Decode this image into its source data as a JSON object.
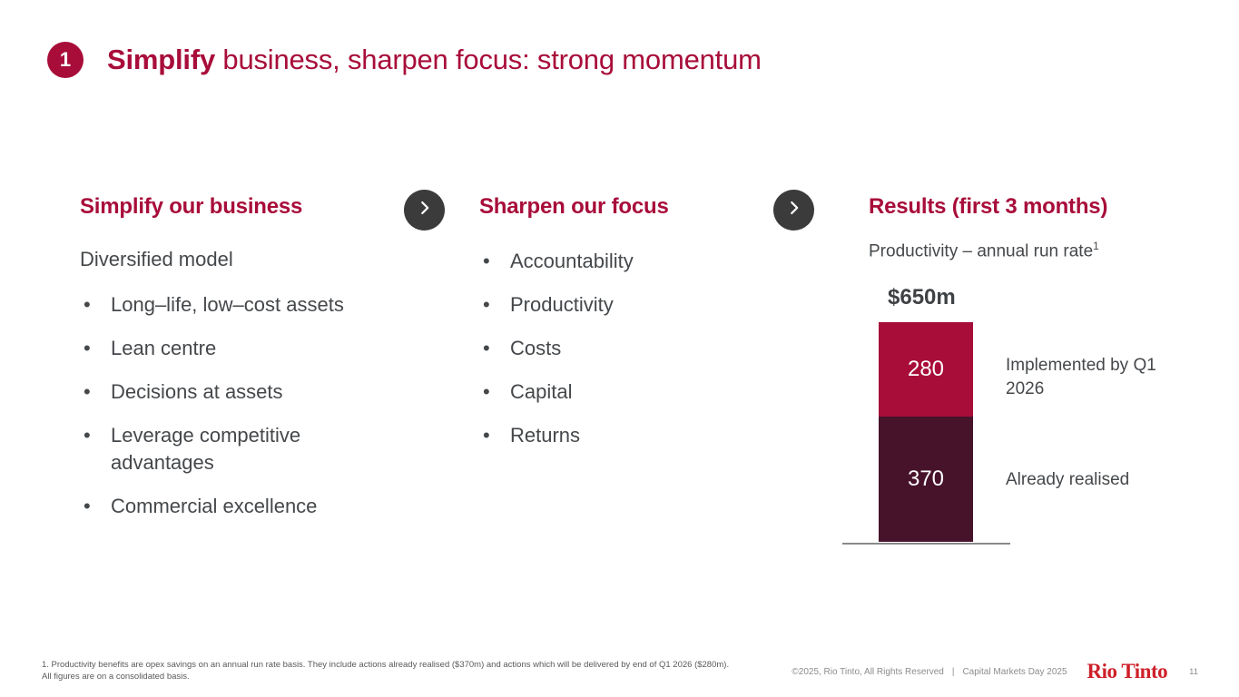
{
  "slide": {
    "badge": "1",
    "title_bold": "Simplify",
    "title_rest": " business, sharpen focus: strong momentum"
  },
  "columns": [
    {
      "header": "Simplify our business",
      "lead": "Diversified model",
      "items": [
        "Long–life, low–cost assets",
        "Lean centre",
        "Decisions at assets",
        "Leverage competitive advantages",
        "Commercial excellence"
      ]
    },
    {
      "header": "Sharpen our focus",
      "items": [
        "Accountability",
        "Productivity",
        "Costs",
        "Capital",
        "Returns"
      ]
    },
    {
      "header": "Results (first 3 months)",
      "subtitle": "Productivity – annual run rate",
      "subtitle_sup": "1"
    }
  ],
  "chart_data": {
    "type": "bar",
    "stacked": true,
    "title": "Productivity – annual run rate¹",
    "total_label": "$650m",
    "total": 650,
    "unit": "$m",
    "categories": [
      "Productivity – annual run rate"
    ],
    "segments": [
      {
        "name": "Implemented by Q1 2026",
        "value": 280,
        "color": "#A80D3A"
      },
      {
        "name": "Already realised",
        "value": 370,
        "color": "#47132B"
      }
    ],
    "baseline": true,
    "value_labels": "inside-white"
  },
  "icons": {
    "chevron_right": "›"
  },
  "colors": {
    "crimson": "#A80D3A",
    "dark_maroon": "#47132B",
    "charcoal_circle": "#3B3B3B",
    "body_text": "#45484B",
    "logo_red": "#CE2029"
  },
  "footer": {
    "footnote_line1": "1. Productivity benefits are opex savings on an annual run rate basis. They include actions already realised ($370m) and actions which will be delivered by end of Q1 2026 ($280m).",
    "footnote_line2": "All figures are on a consolidated basis.",
    "copyright": "©2025, Rio Tinto, All Rights Reserved",
    "separator": "|",
    "event": "Capital Markets Day 2025",
    "logo": "Rio Tinto",
    "page_number": "11"
  }
}
